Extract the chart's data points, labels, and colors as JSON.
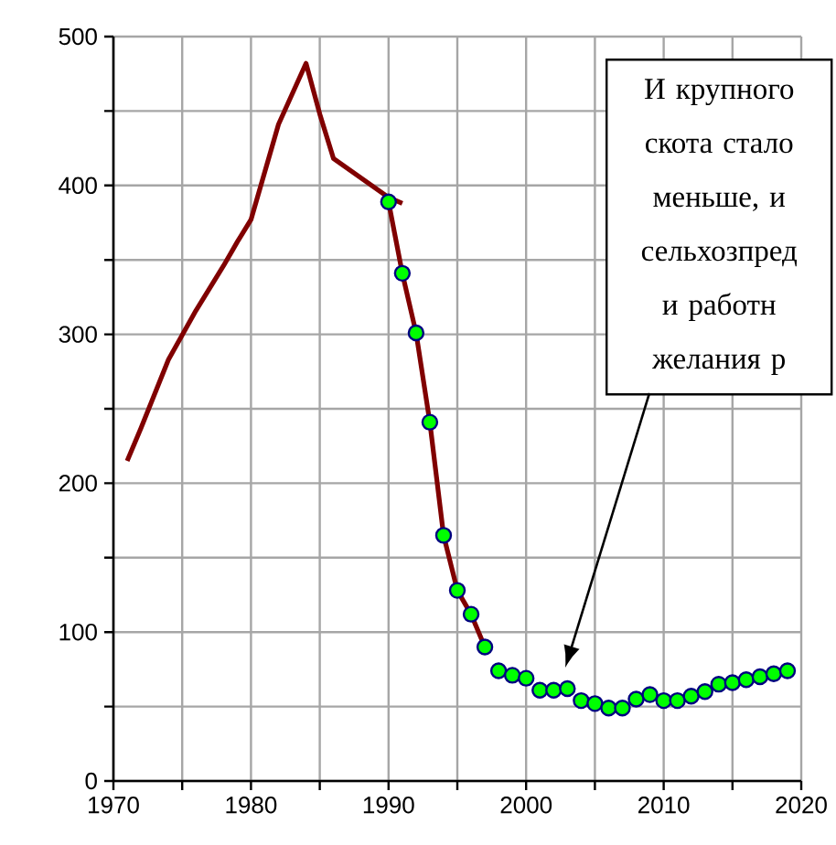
{
  "chart_data": {
    "type": "line",
    "xlim": [
      1970,
      2020
    ],
    "ylim": [
      0,
      500
    ],
    "xticks": [
      1970,
      1980,
      1990,
      2000,
      2010,
      2020
    ],
    "yticks": [
      0,
      100,
      200,
      300,
      400,
      500
    ],
    "grid": true,
    "series": [
      {
        "color": "#800000",
        "marker": "none",
        "x": [
          1971,
          1972,
          1974,
          1976,
          1978,
          1979,
          1980,
          1982,
          1984,
          1985,
          1986,
          1990,
          1991
        ],
        "values": [
          215,
          237,
          283,
          316,
          346,
          362,
          377,
          441,
          482,
          448,
          418,
          392,
          388
        ]
      },
      {
        "color": "#800000",
        "marker": "none",
        "x": [
          1990,
          1991,
          1992,
          1993,
          1994,
          1995,
          1996,
          1997
        ],
        "values": [
          389,
          341,
          301,
          241,
          165,
          128,
          112,
          90
        ]
      },
      {
        "type": "scatter",
        "color": "#00ff00",
        "marker": "circle",
        "x": [
          1990,
          1991,
          1992,
          1993,
          1994,
          1995,
          1996,
          1997,
          1998,
          1999,
          2000,
          2001,
          2002,
          2003,
          2004,
          2005,
          2006,
          2007,
          2008,
          2009,
          2010,
          2011,
          2012,
          2013,
          2014,
          2015,
          2016,
          2017,
          2018,
          2019
        ],
        "values": [
          389,
          341,
          301,
          241,
          165,
          128,
          112,
          90,
          74,
          71,
          69,
          61,
          61,
          62,
          54,
          52,
          49,
          49,
          55,
          58,
          54,
          54,
          57,
          60,
          65,
          66,
          68,
          70,
          72,
          74
        ]
      }
    ],
    "annotations": [
      "И крупного скота стало меньше, и сельхозпред и работн желания р"
    ]
  }
}
